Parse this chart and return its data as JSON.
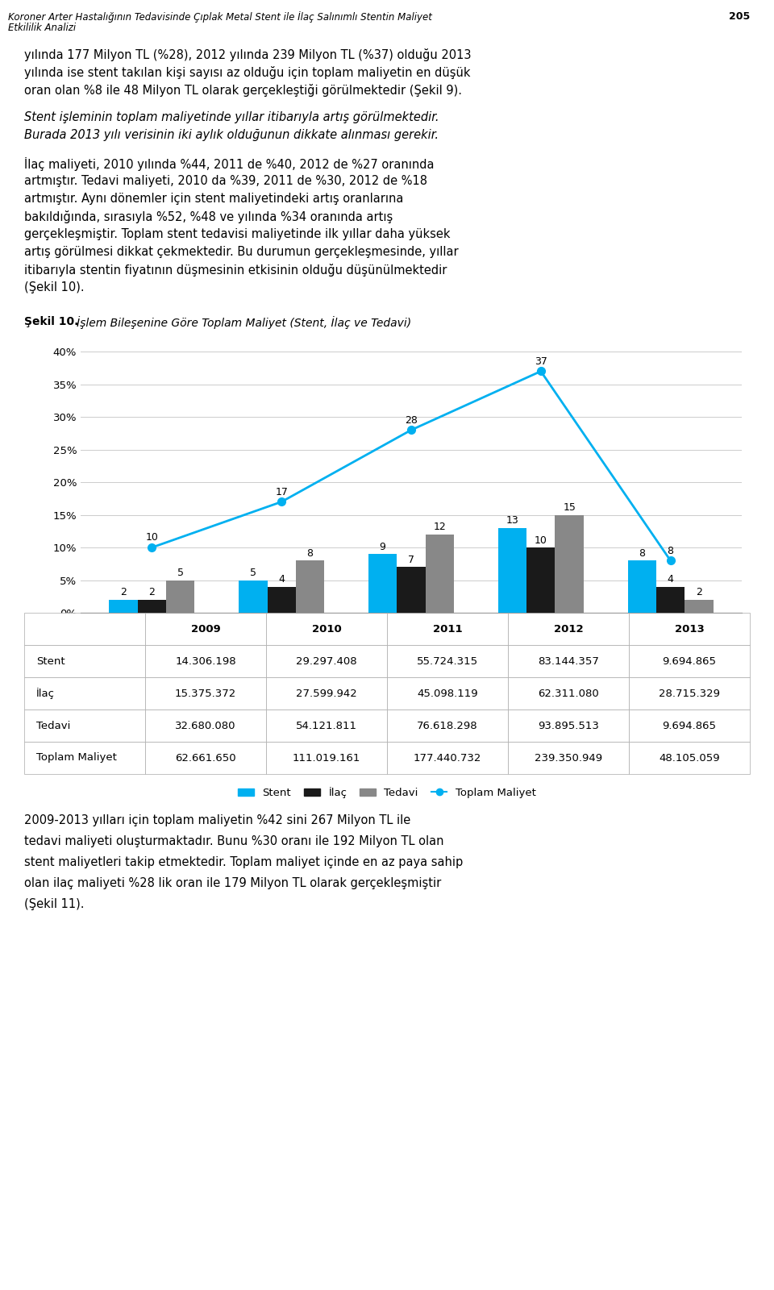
{
  "years": [
    "2009",
    "2010",
    "2011",
    "2012",
    "2013"
  ],
  "stent_pct": [
    2,
    5,
    9,
    13,
    8
  ],
  "ilac_pct": [
    2,
    4,
    7,
    10,
    4
  ],
  "tedavi_pct": [
    5,
    8,
    12,
    15,
    2
  ],
  "toplam_pct": [
    10,
    17,
    28,
    37,
    8
  ],
  "stent_color": "#00b0f0",
  "ilac_color": "#1a1a1a",
  "tedavi_color": "#888888",
  "toplam_color": "#00b0f0",
  "table_rows": [
    [
      "Stent",
      "14.306.198",
      "29.297.408",
      "55.724.315",
      "83.144.357",
      "9.694.865"
    ],
    [
      "İlaç",
      "15.375.372",
      "27.599.942",
      "45.098.119",
      "62.311.080",
      "28.715.329"
    ],
    [
      "Tedavi",
      "32.680.080",
      "54.121.811",
      "76.618.298",
      "93.895.513",
      "9.694.865"
    ],
    [
      "Toplam Maliyet",
      "62.661.650",
      "111.019.161",
      "177.440.732",
      "239.350.949",
      "48.105.059"
    ]
  ],
  "table_header": [
    "",
    "2009",
    "2010",
    "2011",
    "2012",
    "2013"
  ],
  "legend_row_colors": [
    "#00b0f0",
    "#1a1a1a",
    "#888888",
    "#00b0f0"
  ],
  "ylim": [
    0,
    42
  ],
  "yticks": [
    0,
    5,
    10,
    15,
    20,
    25,
    30,
    35,
    40
  ],
  "ytick_labels": [
    "0%",
    "5%",
    "10%",
    "15%",
    "20%",
    "25%",
    "30%",
    "35%",
    "40%"
  ],
  "chart_title": "Şekil 10. İşlem Bileşenine Göre Toplam Maliyet (Stent, İlaç ve Tedavi)",
  "header_line1": "Koroner Arter Hastalığının Tedavisinde Çıplak Metal Stent ile İlaç Salınımlı Stentin Maliyet",
  "header_line2": "Etkililik Analizi",
  "header_page": "205",
  "para1": "yılında 177 Milyon TL (%28), 2012 yılında 239 Milyon TL (%37) olduğu 2013\nyılında ise stent takılan kişi sayısı az olduğu için toplam maliyetin en düşük\noran olan %8 ile 48 Milyon TL olarak gerçekleştiği görülmektedir (Şekil 9).",
  "para2": "Stent işleminin toplam maliyetinde yıllar itibarıyla artış görülmektedir.\nBurada 2013 yılı verisinin iki aylık olduğunun dikkate alınması gerekir.",
  "para3": "İlaç maliyeti, 2010 yılında %44, 2011 de %40, 2012 de %27 oranında\nartmıştır. Tedavi maliyeti, 2010 da %39, 2011 de %30, 2012 de %18\nartmıştır. Aynı dönemler için stent maliyetindeki artış oranlarına\nbakıldığında, sırasıyla %52, %48 ve yılında %34 oranında artış\ngerçekleşmiştir. Toplam stent tedavisi maliyetinde ilk yıllar daha yüksek\nartış görülmesi dikkat çekmektedir. Bu durumun gerçekleşmesinde, yıllar\nitibarıyla stentin fiyatının düşmesinin etkisinin olduğu düşünülmektedir\n(Şekil 10).",
  "para4": "2009-2013 yılları için toplam maliyetin %42 sini 267 Milyon TL ile\ntedavi maliyeti oluşturmaktadır. Bunu %30 oranı ile 192 Milyon TL olan\nstent maliyetleri takip etmektedir. Toplam maliyet içinde en az paya sahip\nolan ilaç maliyeti %28 lik oran ile 179 Milyon TL olarak gerçekleşmiştir\n(Şekil 11)."
}
